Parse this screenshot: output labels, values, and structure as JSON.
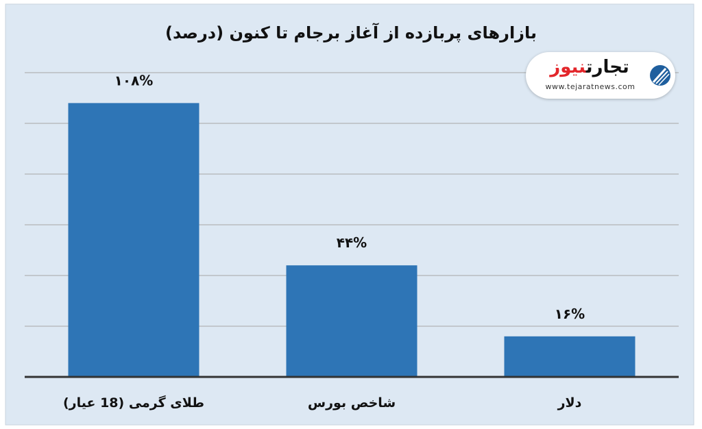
{
  "chart_data": {
    "type": "bar",
    "title": "بازارهای پربازده از آغاز برجام تا کنون (درصد)",
    "categories": [
      "طلای گرمی (18 عیار)",
      "شاخص بورس",
      "دلار"
    ],
    "values": [
      108,
      44,
      16
    ],
    "value_labels": [
      "۱۰۸%",
      "۴۴%",
      "۱۶%"
    ],
    "ylim": [
      0,
      120
    ],
    "grid": true,
    "colors": {
      "bar": "#2e75b6",
      "plot_bg": "#dde8f3",
      "grid": "#a6a6a6",
      "axis": "#333333"
    }
  },
  "logo": {
    "word_black": "تجارت",
    "word_red": "نیوز",
    "url": "www.tejaratnews.com",
    "icon": "tejaratnews-emblem-icon"
  }
}
